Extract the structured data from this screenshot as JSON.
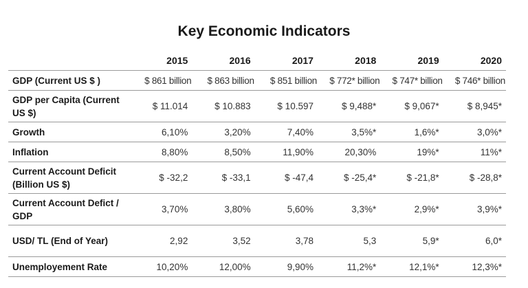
{
  "title": "Key Economic Indicators",
  "years": [
    "2015",
    "2016",
    "2017",
    "2018",
    "2019",
    "2020"
  ],
  "rows": [
    {
      "label": "GDP (Current US $ )",
      "values": [
        "$ 861 billion",
        "$ 863 billion",
        "$ 851 billion",
        "$ 772* billion",
        "$ 747* billion",
        "$ 746* billion"
      ]
    },
    {
      "label": "GDP per Capita (Current US $)",
      "values": [
        "$ 11.014",
        "$ 10.883",
        "$ 10.597",
        "$ 9,488*",
        "$ 9,067*",
        "$ 8,945*"
      ]
    },
    {
      "label": "Growth",
      "values": [
        "6,10%",
        "3,20%",
        "7,40%",
        "3,5%*",
        "1,6%*",
        "3,0%*"
      ]
    },
    {
      "label": "Inflation",
      "values": [
        "8,80%",
        "8,50%",
        "11,90%",
        "20,30%",
        "19%*",
        "11%*"
      ]
    },
    {
      "label": "Current Account Deficit (Billion US $)",
      "values": [
        "$ -32,2",
        "$ -33,1",
        "$ -47,4",
        "$ -25,4*",
        "$ -21,8*",
        "$ -28,8*"
      ]
    },
    {
      "label": "Current Account Defict / GDP",
      "values": [
        "3,70%",
        "3,80%",
        "5,60%",
        "3,3%*",
        "2,9%*",
        "3,9%*"
      ]
    },
    {
      "label": "USD/ TL (End of Year)",
      "values": [
        "2,92",
        "3,52",
        "3,78",
        "5,3",
        "5,9*",
        "6,0*"
      ]
    },
    {
      "label": "Unemployement Rate",
      "values": [
        "10,20%",
        "12,00%",
        "9,90%",
        "11,2%*",
        "12,1%*",
        "12,3%*"
      ]
    }
  ]
}
